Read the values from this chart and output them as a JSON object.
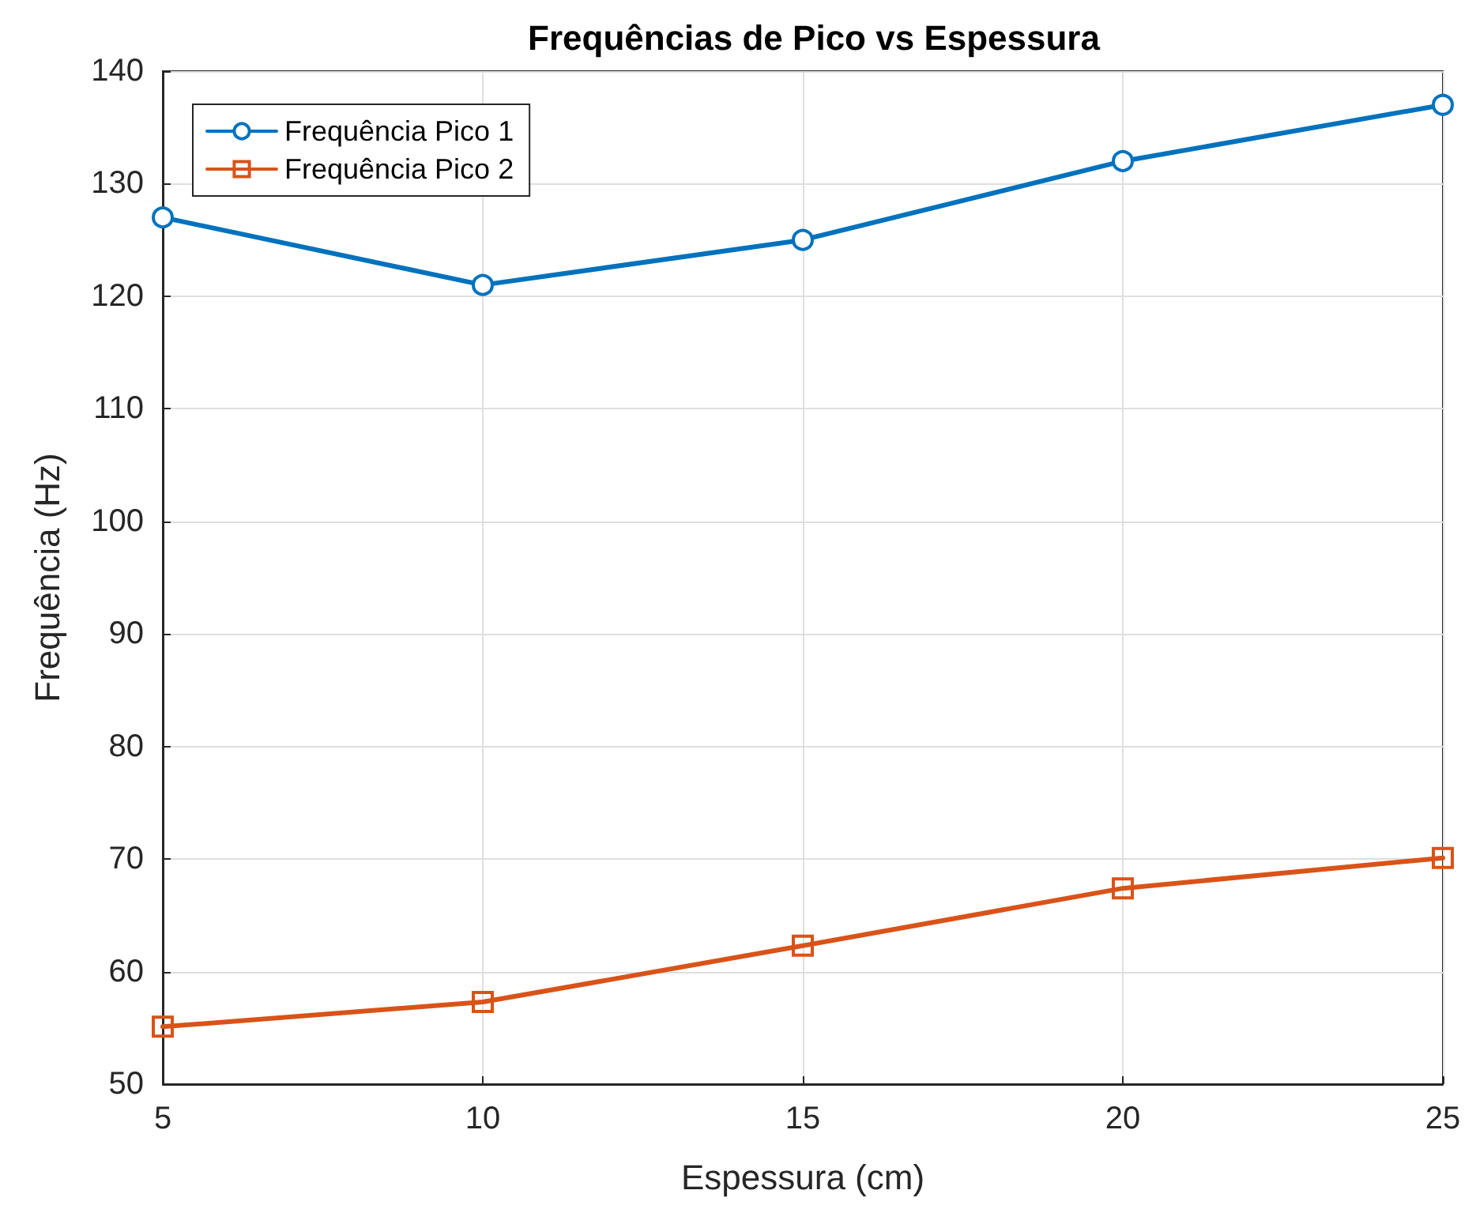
{
  "chart_data": {
    "type": "line",
    "title": "Frequências de Pico vs Espessura",
    "xlabel": "Espessura (cm)",
    "ylabel": "Frequência (Hz)",
    "x": [
      5,
      10,
      15,
      20,
      25
    ],
    "series": [
      {
        "name": "Frequência Pico 1",
        "color": "#0072bd",
        "marker": "circle",
        "values": [
          127,
          121,
          125,
          132,
          137
        ]
      },
      {
        "name": "Frequência Pico 2",
        "color": "#d95319",
        "marker": "square",
        "values": [
          55.1,
          57.3,
          62.3,
          67.4,
          70.1
        ]
      }
    ],
    "xlim": [
      5,
      25
    ],
    "xticks": [
      5,
      10,
      15,
      20,
      25
    ],
    "ylim": [
      50,
      140
    ],
    "yticks": [
      50,
      60,
      70,
      80,
      90,
      100,
      110,
      120,
      130,
      140
    ],
    "grid": true,
    "legend": "top left",
    "line_style": "solid"
  }
}
